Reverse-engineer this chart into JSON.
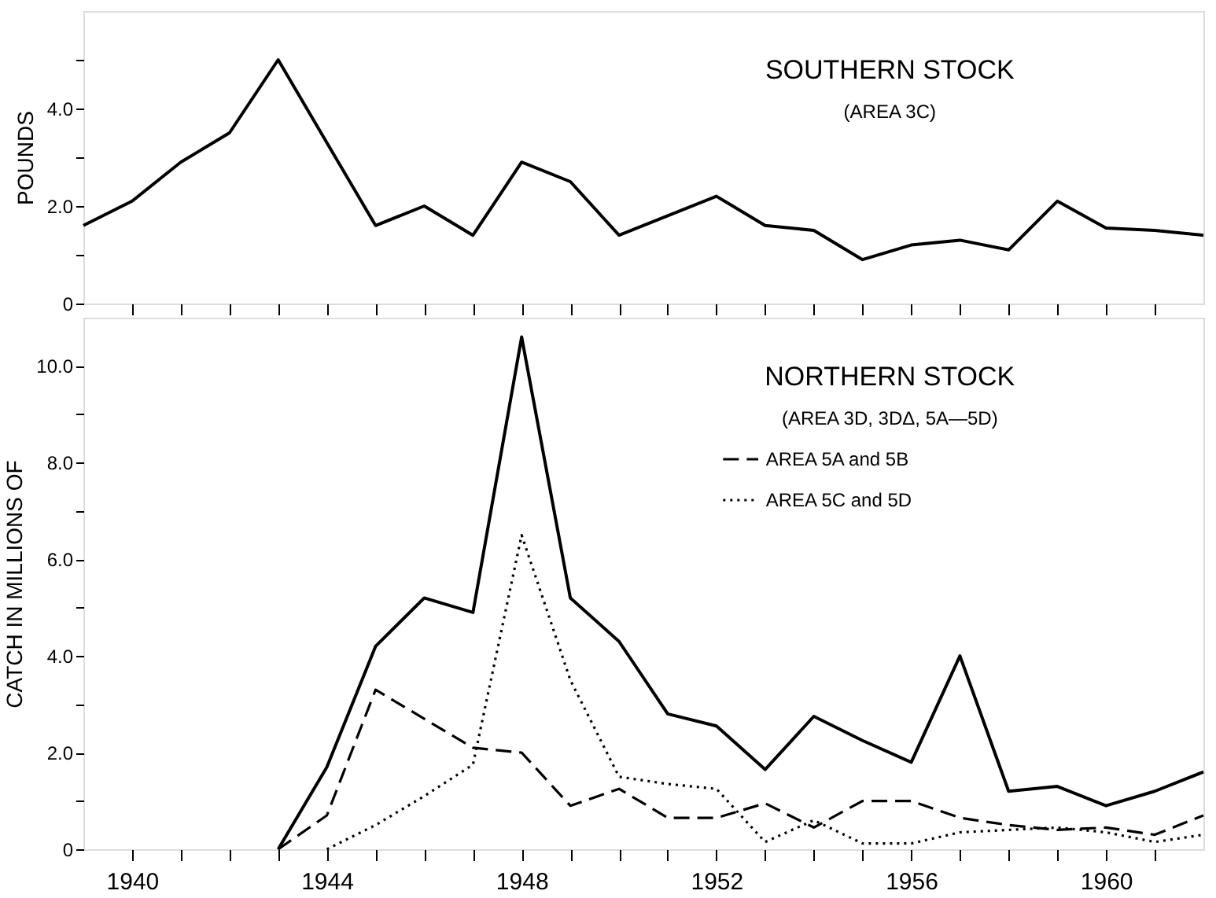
{
  "chart_data": [
    {
      "type": "line",
      "title": "SOUTHERN STOCK",
      "subtitle": "(AREA 3C)",
      "ylabel": "POUNDS",
      "x": [
        1939,
        1940,
        1941,
        1942,
        1943,
        1944,
        1945,
        1946,
        1947,
        1948,
        1949,
        1950,
        1951,
        1952,
        1953,
        1954,
        1955,
        1956,
        1957,
        1958,
        1959,
        1960,
        1961,
        1962
      ],
      "series": [
        {
          "color": "#000000",
          "line_style": "solid",
          "values": [
            1.6,
            2.1,
            2.9,
            3.5,
            5.0,
            3.3,
            1.6,
            2.0,
            1.4,
            2.9,
            2.5,
            1.4,
            1.8,
            2.2,
            1.6,
            1.5,
            0.9,
            1.2,
            1.3,
            1.1,
            2.1,
            1.55,
            1.5,
            1.4
          ]
        }
      ],
      "xlim": [
        1939,
        1962
      ],
      "xticks": [
        {
          "value": 1940,
          "label": null
        },
        {
          "value": 1941,
          "label": null
        },
        {
          "value": 1942,
          "label": null
        },
        {
          "value": 1943,
          "label": null
        },
        {
          "value": 1944,
          "label": null
        },
        {
          "value": 1945,
          "label": null
        },
        {
          "value": 1946,
          "label": null
        },
        {
          "value": 1947,
          "label": null
        },
        {
          "value": 1948,
          "label": null
        },
        {
          "value": 1949,
          "label": null
        },
        {
          "value": 1950,
          "label": null
        },
        {
          "value": 1951,
          "label": null
        },
        {
          "value": 1952,
          "label": null
        },
        {
          "value": 1953,
          "label": null
        },
        {
          "value": 1954,
          "label": null
        },
        {
          "value": 1955,
          "label": null
        },
        {
          "value": 1956,
          "label": null
        },
        {
          "value": 1957,
          "label": null
        },
        {
          "value": 1958,
          "label": null
        },
        {
          "value": 1959,
          "label": null
        },
        {
          "value": 1960,
          "label": null
        },
        {
          "value": 1961,
          "label": null
        }
      ],
      "ylim": [
        0,
        6
      ],
      "yticks": [
        0,
        {
          "value": 1,
          "label": null
        },
        {
          "value": 2,
          "label": "2.0"
        },
        {
          "value": 3,
          "label": null
        },
        {
          "value": 4,
          "label": "4.0"
        },
        {
          "value": 5,
          "label": null
        }
      ],
      "tick_labels": "y",
      "grid": false,
      "legend": false,
      "marker": "none"
    },
    {
      "type": "line",
      "title": "NORTHERN STOCK",
      "subtitle": "(AREA 3D, 3DΔ, 5A—5D)",
      "ylabel": "CATCH IN MILLIONS OF",
      "series": [
        {
          "color": "#000000",
          "line_style": "solid",
          "x": [
            1943,
            1944,
            1945,
            1946,
            1947,
            1948,
            1949,
            1950,
            1951,
            1952,
            1953,
            1954,
            1955,
            1956,
            1957,
            1958,
            1959,
            1960,
            1961,
            1962
          ],
          "values": [
            0,
            1.7,
            4.2,
            5.2,
            4.9,
            10.6,
            5.2,
            4.3,
            2.8,
            2.55,
            1.65,
            2.75,
            2.25,
            1.8,
            4.0,
            1.2,
            1.3,
            0.9,
            1.2,
            1.6
          ]
        },
        {
          "name": "AREA 5A and 5B",
          "color": "#000000",
          "line_style": "dashed",
          "x": [
            1943,
            1944,
            1945,
            1946,
            1947,
            1948,
            1949,
            1950,
            1951,
            1952,
            1953,
            1954,
            1955,
            1956,
            1957,
            1958,
            1959,
            1960,
            1961,
            1962
          ],
          "values": [
            0,
            0.7,
            3.3,
            2.7,
            2.1,
            2.0,
            0.9,
            1.25,
            0.65,
            0.65,
            0.95,
            0.45,
            1.0,
            1.0,
            0.65,
            0.5,
            0.4,
            0.45,
            0.3,
            0.7
          ]
        },
        {
          "name": "AREA 5C and 5D",
          "color": "#000000",
          "line_style": "dotted",
          "x": [
            1944,
            1945,
            1946,
            1947,
            1948,
            1949,
            1950,
            1951,
            1952,
            1953,
            1954,
            1955,
            1956,
            1957,
            1958,
            1959,
            1960,
            1961,
            1962
          ],
          "values": [
            0,
            0.5,
            1.1,
            1.75,
            6.5,
            3.5,
            1.5,
            1.35,
            1.25,
            0.15,
            0.6,
            0.12,
            0.12,
            0.35,
            0.4,
            0.45,
            0.35,
            0.15,
            0.3
          ]
        }
      ],
      "xlim": [
        1939,
        1962
      ],
      "xticks": [
        1940,
        {
          "value": 1941,
          "label": null
        },
        {
          "value": 1942,
          "label": null
        },
        {
          "value": 1943,
          "label": null
        },
        1944,
        {
          "value": 1945,
          "label": null
        },
        {
          "value": 1946,
          "label": null
        },
        {
          "value": 1947,
          "label": null
        },
        1948,
        {
          "value": 1949,
          "label": null
        },
        {
          "value": 1950,
          "label": null
        },
        {
          "value": 1951,
          "label": null
        },
        1952,
        {
          "value": 1953,
          "label": null
        },
        {
          "value": 1954,
          "label": null
        },
        {
          "value": 1955,
          "label": null
        },
        1956,
        {
          "value": 1957,
          "label": null
        },
        {
          "value": 1958,
          "label": null
        },
        {
          "value": 1959,
          "label": null
        },
        1960,
        {
          "value": 1961,
          "label": null
        }
      ],
      "ylim": [
        0,
        11
      ],
      "yticks": [
        0,
        {
          "value": 1,
          "label": null
        },
        {
          "value": 2,
          "label": "2.0"
        },
        {
          "value": 3,
          "label": null
        },
        {
          "value": 4,
          "label": "4.0"
        },
        {
          "value": 5,
          "label": null
        },
        {
          "value": 6,
          "label": "6.0"
        },
        {
          "value": 7,
          "label": null
        },
        {
          "value": 8,
          "label": "8.0"
        },
        {
          "value": 9,
          "label": null
        },
        {
          "value": 10,
          "label": "10.0"
        }
      ],
      "grid": false,
      "legend": "top right",
      "marker": "none"
    }
  ]
}
